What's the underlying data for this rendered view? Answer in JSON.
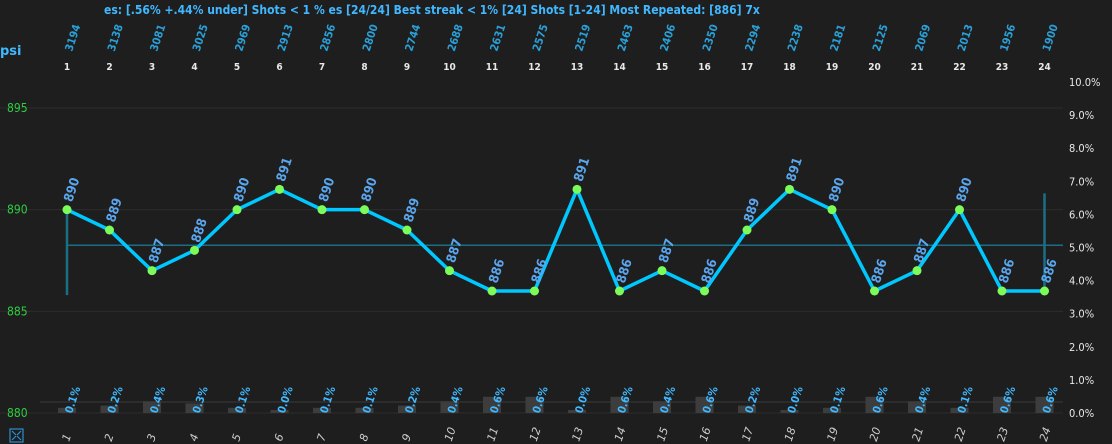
{
  "header": {
    "stats_text": "es: [.56% +.44% under] Shots < 1 % es [24/24] Best streak < 1% [24] Shots [1-24] Most Repeated: [886] 7x",
    "unit_label": "psi"
  },
  "colors": {
    "background": "#1e1e1e",
    "line": "#00c8ff",
    "point": "#7cfc5a",
    "left_ticks": "#2ecc40",
    "value_labels": "#5aa6ee",
    "mean_line": "#1b6e86"
  },
  "chart_data": {
    "type": "line",
    "x": [
      1,
      2,
      3,
      4,
      5,
      6,
      7,
      8,
      9,
      10,
      11,
      12,
      13,
      14,
      15,
      16,
      17,
      18,
      19,
      20,
      21,
      22,
      23,
      24
    ],
    "top_labels": [
      3194,
      3138,
      3081,
      3025,
      2969,
      2913,
      2856,
      2800,
      2744,
      2688,
      2631,
      2575,
      2519,
      2463,
      2406,
      2350,
      2294,
      2238,
      2181,
      2125,
      2069,
      2013,
      1956,
      1900
    ],
    "values": [
      890,
      889,
      887,
      888,
      890,
      891,
      890,
      890,
      889,
      887,
      886,
      886,
      891,
      886,
      887,
      886,
      889,
      891,
      890,
      886,
      887,
      890,
      886,
      886
    ],
    "percent_labels": [
      "0.1%",
      "0.2%",
      "0.4%",
      "0.3%",
      "0.1%",
      "0.0%",
      "0.1%",
      "0.1%",
      "0.2%",
      "0.4%",
      "0.6%",
      "0.6%",
      "0.0%",
      "0.6%",
      "0.4%",
      "0.6%",
      "0.2%",
      "0.0%",
      "0.1%",
      "0.6%",
      "0.4%",
      "0.1%",
      "0.6%",
      "0.6%"
    ],
    "percent_values": [
      0.1,
      0.2,
      0.4,
      0.3,
      0.1,
      0.0,
      0.1,
      0.1,
      0.2,
      0.4,
      0.6,
      0.6,
      0.0,
      0.6,
      0.4,
      0.6,
      0.2,
      0.0,
      0.1,
      0.6,
      0.4,
      0.1,
      0.6,
      0.6
    ],
    "ylim": [
      880,
      895
    ],
    "yticks": [
      "895",
      "890",
      "885",
      "880"
    ],
    "y2lim": [
      0,
      10
    ],
    "y2ticks": [
      "0.0%",
      "1.0%",
      "2.0%",
      "3.0%",
      "4.0%",
      "5.0%",
      "6.0%",
      "7.0%",
      "8.0%",
      "9.0%",
      "10.0%"
    ],
    "mean": 888.25,
    "left_bar_range": [
      885.8,
      890.2
    ],
    "right_bar_range": [
      886.2,
      890.8
    ],
    "grid": true
  }
}
